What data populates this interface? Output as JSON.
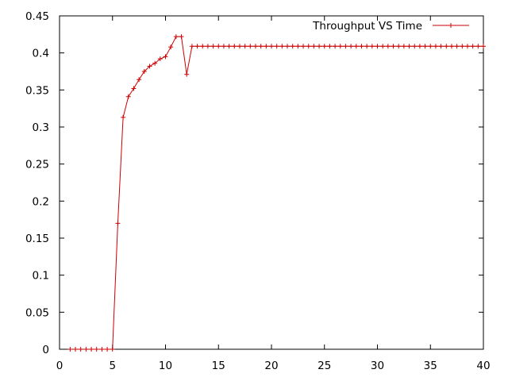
{
  "chart_data": {
    "type": "line",
    "title": "",
    "xlabel": "",
    "ylabel": "",
    "xlim": [
      0,
      40
    ],
    "ylim": [
      0,
      0.45
    ],
    "x_ticks": [
      "0",
      "5",
      "10",
      "15",
      "20",
      "25",
      "30",
      "35",
      "40"
    ],
    "y_ticks": [
      "0",
      "0.05",
      "0.1",
      "0.15",
      "0.2",
      "0.25",
      "0.3",
      "0.35",
      "0.4",
      "0.45"
    ],
    "grid": false,
    "legend": "top-right",
    "series": [
      {
        "name": "Throughput VS Time",
        "color": "#cc0000",
        "marker": "plus",
        "x": [
          1,
          1.5,
          2,
          2.5,
          3,
          3.5,
          4,
          4.5,
          5,
          5.5,
          6,
          6.5,
          7,
          7.5,
          8,
          8.5,
          9,
          9.5,
          10,
          10.5,
          11,
          11.5,
          12,
          12.5,
          13,
          13.5,
          14,
          14.5,
          15,
          15.5,
          16,
          16.5,
          17,
          17.5,
          18,
          18.5,
          19,
          19.5,
          20,
          20.5,
          21,
          21.5,
          22,
          22.5,
          23,
          23.5,
          24,
          24.5,
          25,
          25.5,
          26,
          26.5,
          27,
          27.5,
          28,
          28.5,
          29,
          29.5,
          30,
          30.5,
          31,
          31.5,
          32,
          32.5,
          33,
          33.5,
          34,
          34.5,
          35,
          35.5,
          36,
          36.5,
          37,
          37.5,
          38,
          38.5,
          39,
          39.5,
          40
        ],
        "values": [
          0,
          0,
          0,
          0,
          0,
          0,
          0,
          0,
          0,
          0.17,
          0.313,
          0.341,
          0.352,
          0.364,
          0.375,
          0.382,
          0.386,
          0.392,
          0.395,
          0.408,
          0.422,
          0.422,
          0.371,
          0.409,
          0.409,
          0.409,
          0.409,
          0.409,
          0.409,
          0.409,
          0.409,
          0.409,
          0.409,
          0.409,
          0.409,
          0.409,
          0.409,
          0.409,
          0.409,
          0.409,
          0.409,
          0.409,
          0.409,
          0.409,
          0.409,
          0.409,
          0.409,
          0.409,
          0.409,
          0.409,
          0.409,
          0.409,
          0.409,
          0.409,
          0.409,
          0.409,
          0.409,
          0.409,
          0.409,
          0.409,
          0.409,
          0.409,
          0.409,
          0.409,
          0.409,
          0.409,
          0.409,
          0.409,
          0.409,
          0.409,
          0.409,
          0.409,
          0.409,
          0.409,
          0.409,
          0.409,
          0.409,
          0.409,
          0.409
        ]
      }
    ]
  }
}
